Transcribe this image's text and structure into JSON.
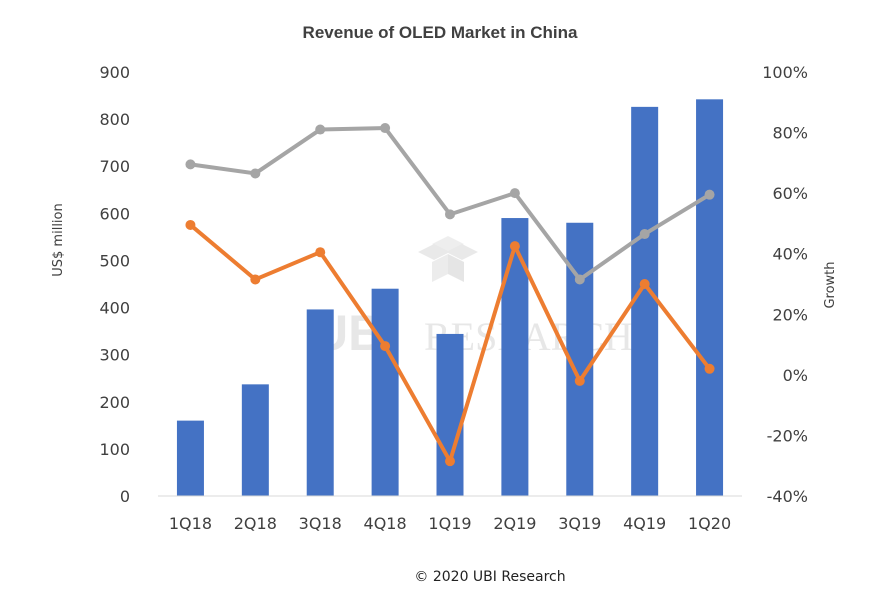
{
  "chart_data": {
    "type": "bar",
    "title": "Revenue of OLED Market in China",
    "ylabel": "US$ million",
    "y2label": "Growth",
    "ylim": [
      0,
      900
    ],
    "y2lim": [
      -40,
      100
    ],
    "yticks": [
      "0",
      "100",
      "200",
      "300",
      "400",
      "500",
      "600",
      "700",
      "800",
      "900"
    ],
    "y2ticks": [
      "-40%",
      "-20%",
      "0%",
      "20%",
      "40%",
      "60%",
      "80%",
      "100%"
    ],
    "categories": [
      "1Q18",
      "2Q18",
      "3Q18",
      "4Q18",
      "1Q19",
      "2Q19",
      "3Q19",
      "4Q19",
      "1Q20"
    ],
    "series": [
      {
        "name": "Revenue",
        "type": "bar",
        "axis": "left",
        "color": "#4472c4",
        "values": [
          160,
          237,
          396,
          440,
          344,
          590,
          580,
          826,
          842
        ]
      },
      {
        "name": "Growth (gray)",
        "type": "line",
        "axis": "right",
        "color": "#a5a5a5",
        "values": [
          69.5,
          66.5,
          81,
          81.5,
          53,
          60,
          31.5,
          46.5,
          59.5
        ]
      },
      {
        "name": "Growth (orange)",
        "type": "line",
        "axis": "right",
        "color": "#ed7d31",
        "values": [
          49.5,
          31.5,
          40.5,
          9.5,
          -28.5,
          42.5,
          -2,
          30,
          2
        ]
      }
    ],
    "grid": false
  },
  "watermark": {
    "logo": "UBI",
    "text": "RESEARCH"
  },
  "footer": {
    "copyright": "© 2020 UBI Research"
  }
}
